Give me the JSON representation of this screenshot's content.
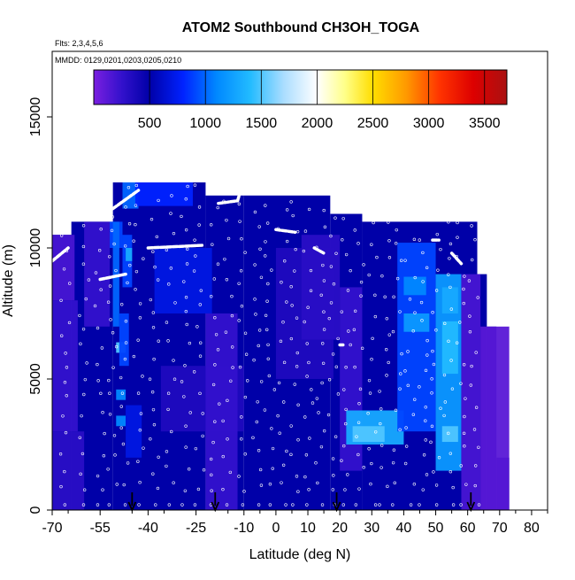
{
  "chart_data": {
    "type": "heatmap",
    "title": "ATOM2 Southbound CH3OH_TOGA",
    "flights_note": "Flts: 2,3,4,5,6",
    "dates_note": "MMDD: 0129,0201,0203,0205,0210",
    "xlabel": "Latitude (deg N)",
    "ylabel": "Altitude (m)",
    "xlim": [
      -70,
      85
    ],
    "ylim": [
      0,
      17500
    ],
    "x_ticks": [
      -70,
      -55,
      -40,
      -25,
      -10,
      0,
      10,
      20,
      30,
      40,
      50,
      60,
      70,
      80
    ],
    "y_ticks": [
      0,
      5000,
      10000,
      15000
    ],
    "colorbar": {
      "range": [
        0,
        3700
      ],
      "ticks": [
        500,
        1000,
        1500,
        2000,
        2500,
        3000,
        3500
      ],
      "stops": [
        {
          "v": 0,
          "color": "#7a1fe0"
        },
        {
          "v": 250,
          "color": "#3311cc"
        },
        {
          "v": 500,
          "color": "#0000a8"
        },
        {
          "v": 800,
          "color": "#0022ff"
        },
        {
          "v": 1100,
          "color": "#0088ff"
        },
        {
          "v": 1400,
          "color": "#22bbff"
        },
        {
          "v": 1700,
          "color": "#aaddff"
        },
        {
          "v": 2000,
          "color": "#ffffff"
        },
        {
          "v": 2250,
          "color": "#ffff88"
        },
        {
          "v": 2500,
          "color": "#ffdd00"
        },
        {
          "v": 2800,
          "color": "#ff9900"
        },
        {
          "v": 3100,
          "color": "#ff3300"
        },
        {
          "v": 3400,
          "color": "#dd0000"
        },
        {
          "v": 3700,
          "color": "#aa1111"
        }
      ]
    },
    "column_tops": [
      {
        "lat_from": -70,
        "lat_to": -64,
        "top": 10500
      },
      {
        "lat_from": -64,
        "lat_to": -51,
        "top": 11000
      },
      {
        "lat_from": -51,
        "lat_to": -22,
        "top": 12500
      },
      {
        "lat_from": -22,
        "lat_to": -10,
        "top": 12000
      },
      {
        "lat_from": -10,
        "lat_to": 17,
        "top": 12000
      },
      {
        "lat_from": 17,
        "lat_to": 27,
        "top": 11300
      },
      {
        "lat_from": 27,
        "lat_to": 63,
        "top": 11000
      },
      {
        "lat_from": 63,
        "lat_to": 66,
        "top": 9000
      },
      {
        "lat_from": 66,
        "lat_to": 69,
        "top": 7000
      },
      {
        "lat_from": 69,
        "lat_to": 73,
        "top": 2000
      }
    ],
    "background_value": 500,
    "high_cells": [
      {
        "lat": [
          -70,
          -63
        ],
        "alt": [
          8000,
          10500
        ],
        "value": 180
      },
      {
        "lat": [
          -70,
          -62
        ],
        "alt": [
          3000,
          8000
        ],
        "value": 250
      },
      {
        "lat": [
          -70,
          -60
        ],
        "alt": [
          0,
          3000
        ],
        "value": 300
      },
      {
        "lat": [
          -60,
          -52
        ],
        "alt": [
          7000,
          11000
        ],
        "value": 250
      },
      {
        "lat": [
          -52,
          -48
        ],
        "alt": [
          10000,
          11000
        ],
        "value": 900
      },
      {
        "lat": [
          -51,
          -49
        ],
        "alt": [
          7000,
          11000
        ],
        "value": 1000
      },
      {
        "lat": [
          -50,
          -47
        ],
        "alt": [
          6000,
          6400
        ],
        "value": 1500
      },
      {
        "lat": [
          -50,
          -47
        ],
        "alt": [
          4200,
          4600
        ],
        "value": 1100
      },
      {
        "lat": [
          -50,
          -47
        ],
        "alt": [
          3200,
          3600
        ],
        "value": 1100
      },
      {
        "lat": [
          -48,
          -43
        ],
        "alt": [
          11500,
          12500
        ],
        "value": 1000
      },
      {
        "lat": [
          -48,
          -45
        ],
        "alt": [
          8500,
          10500
        ],
        "value": 900
      },
      {
        "lat": [
          -47,
          -45
        ],
        "alt": [
          9500,
          10000
        ],
        "value": 1300
      },
      {
        "lat": [
          -49,
          -46
        ],
        "alt": [
          5500,
          7500
        ],
        "value": 900
      },
      {
        "lat": [
          -47,
          -42
        ],
        "alt": [
          2000,
          4000
        ],
        "value": 700
      },
      {
        "lat": [
          -44,
          -26
        ],
        "alt": [
          11600,
          12500
        ],
        "value": 800
      },
      {
        "lat": [
          -38,
          -20
        ],
        "alt": [
          7500,
          10000
        ],
        "value": 700
      },
      {
        "lat": [
          -36,
          -10
        ],
        "alt": [
          3000,
          5500
        ],
        "value": 350
      },
      {
        "lat": [
          -22,
          -12
        ],
        "alt": [
          0,
          7500
        ],
        "value": 250
      },
      {
        "lat": [
          0,
          18
        ],
        "alt": [
          5000,
          10000
        ],
        "value": 350
      },
      {
        "lat": [
          8,
          20
        ],
        "alt": [
          6500,
          10500
        ],
        "value": 300
      },
      {
        "lat": [
          20,
          27
        ],
        "alt": [
          1500,
          8500
        ],
        "value": 250
      },
      {
        "lat": [
          22,
          40
        ],
        "alt": [
          2500,
          3800
        ],
        "value": 1300
      },
      {
        "lat": [
          24,
          34
        ],
        "alt": [
          2600,
          3200
        ],
        "value": 1500
      },
      {
        "lat": [
          38,
          50
        ],
        "alt": [
          3000,
          10200
        ],
        "value": 900
      },
      {
        "lat": [
          40,
          48
        ],
        "alt": [
          6800,
          7500
        ],
        "value": 1200
      },
      {
        "lat": [
          40,
          47
        ],
        "alt": [
          8200,
          8900
        ],
        "value": 1100
      },
      {
        "lat": [
          50,
          58
        ],
        "alt": [
          1500,
          9000
        ],
        "value": 1200
      },
      {
        "lat": [
          52,
          57
        ],
        "alt": [
          5200,
          7200
        ],
        "value": 1400
      },
      {
        "lat": [
          52,
          57
        ],
        "alt": [
          7500,
          8500
        ],
        "value": 1300
      },
      {
        "lat": [
          52,
          57
        ],
        "alt": [
          2600,
          3200
        ],
        "value": 1500
      },
      {
        "lat": [
          58,
          64
        ],
        "alt": [
          0,
          9000
        ],
        "value": 180
      },
      {
        "lat": [
          64,
          73
        ],
        "alt": [
          0,
          7000
        ],
        "value": 120
      }
    ],
    "flight_track_segments": [
      {
        "lat": [
          -70,
          -65
        ],
        "alt": [
          9500,
          10000
        ]
      },
      {
        "lat": [
          -55,
          -47
        ],
        "alt": [
          8800,
          9000
        ]
      },
      {
        "lat": [
          -51,
          -43
        ],
        "alt": [
          11500,
          12200
        ]
      },
      {
        "lat": [
          -40,
          -23
        ],
        "alt": [
          10000,
          10100
        ]
      },
      {
        "lat": [
          -18,
          -12
        ],
        "alt": [
          11700,
          11800
        ]
      },
      {
        "lat": [
          -12,
          -11
        ],
        "alt": [
          11800,
          12200
        ]
      },
      {
        "lat": [
          0,
          6
        ],
        "alt": [
          10700,
          10600
        ]
      },
      {
        "lat": [
          12,
          15
        ],
        "alt": [
          10000,
          9800
        ]
      },
      {
        "lat": [
          20,
          21
        ],
        "alt": [
          6300,
          6300
        ]
      },
      {
        "lat": [
          49,
          51
        ],
        "alt": [
          10300,
          10300
        ]
      },
      {
        "lat": [
          55,
          58
        ],
        "alt": [
          9800,
          9400
        ]
      }
    ],
    "profile_lats": [
      -66,
      -60,
      -55,
      -51,
      -47,
      -43,
      -38,
      -33,
      -28,
      -24,
      -19,
      -15,
      -10,
      -6,
      -2,
      2,
      6,
      10,
      14,
      18,
      22,
      26,
      30,
      34,
      38,
      42,
      46,
      50,
      54,
      58,
      62
    ],
    "marker_arrows_lat": [
      -45,
      -19,
      19,
      61
    ]
  }
}
